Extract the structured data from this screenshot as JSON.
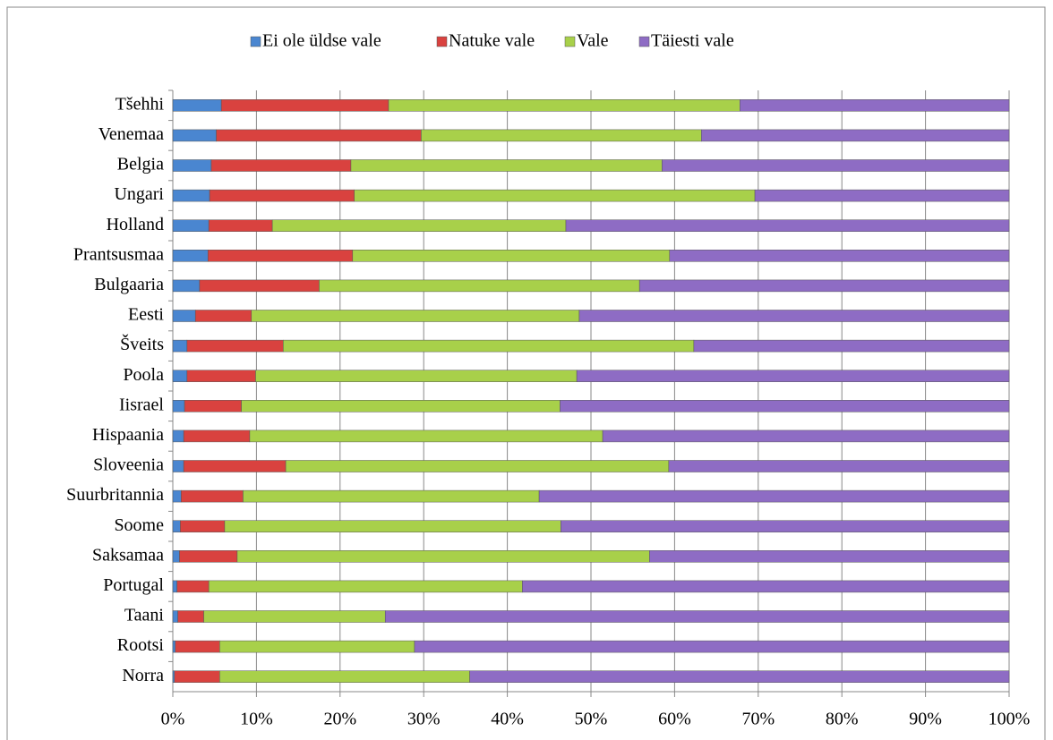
{
  "chart_data": {
    "type": "stacked_barh",
    "categories": [
      "Tšehhi",
      "Venemaa",
      "Belgia",
      "Ungari",
      "Holland",
      "Prantsusmaa",
      "Bulgaaria",
      "Eesti",
      "Šveits",
      "Poola",
      "Iisrael",
      "Hispaania",
      "Sloveenia",
      "Suurbritannia",
      "Soome",
      "Saksamaa",
      "Portugal",
      "Taani",
      "Rootsi",
      "Norra"
    ],
    "series": [
      {
        "name": "Ei ole üldse vale",
        "color": "#4a86d0",
        "values": [
          5.8,
          5.2,
          4.6,
          4.4,
          4.3,
          4.2,
          3.2,
          2.7,
          1.7,
          1.7,
          1.4,
          1.3,
          1.3,
          1.0,
          0.9,
          0.8,
          0.5,
          0.6,
          0.3,
          0.2
        ]
      },
      {
        "name": "Natuke vale",
        "color": "#d9423f",
        "values": [
          20.0,
          24.5,
          16.7,
          17.3,
          7.6,
          17.3,
          14.3,
          6.7,
          11.5,
          8.2,
          6.8,
          7.9,
          12.2,
          7.4,
          5.3,
          6.9,
          3.8,
          3.1,
          5.3,
          5.4
        ]
      },
      {
        "name": "Vale",
        "color": "#a8d04a",
        "values": [
          42.0,
          33.5,
          37.2,
          47.9,
          35.1,
          37.9,
          38.3,
          39.2,
          49.1,
          38.4,
          38.1,
          42.2,
          45.8,
          35.4,
          40.2,
          49.3,
          37.5,
          21.7,
          23.3,
          29.9
        ]
      },
      {
        "name": "Täiesti vale",
        "color": "#8e6cc4",
        "values": [
          32.2,
          36.8,
          41.5,
          30.4,
          53.0,
          40.6,
          44.2,
          51.4,
          37.7,
          51.7,
          53.7,
          48.6,
          40.7,
          56.2,
          53.6,
          43.0,
          58.2,
          74.6,
          71.1,
          64.5
        ]
      }
    ],
    "xlim": [
      0,
      100
    ],
    "xticks": [
      {
        "value": 0,
        "label": "0%"
      },
      {
        "value": 10,
        "label": "10%"
      },
      {
        "value": 20,
        "label": "20%"
      },
      {
        "value": 30,
        "label": "30%"
      },
      {
        "value": 40,
        "label": "40%"
      },
      {
        "value": 50,
        "label": "50%"
      },
      {
        "value": 60,
        "label": "60%"
      },
      {
        "value": 70,
        "label": "70%"
      },
      {
        "value": 80,
        "label": "80%"
      },
      {
        "value": 90,
        "label": "90%"
      },
      {
        "value": 100,
        "label": "100%"
      }
    ],
    "grid": true,
    "legend": "top"
  }
}
